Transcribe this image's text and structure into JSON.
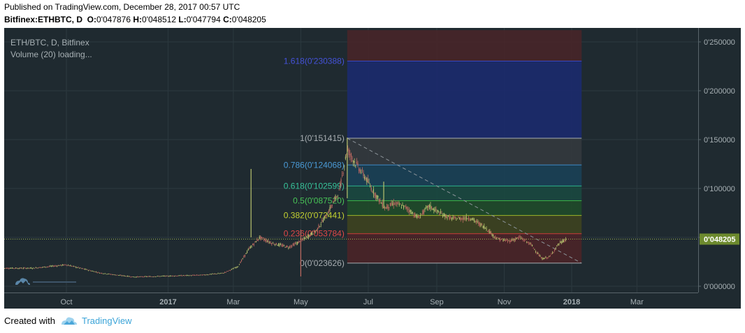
{
  "header": {
    "published": "Published on TradingView.com, December 28, 2017 00:57 UTC",
    "symbol": "Bitfinex:ETHBTC, D",
    "o_label": "O:",
    "o_value": "0'047876",
    "h_label": "H:",
    "h_value": "0'048512",
    "l_label": "L:",
    "l_value": "0'047794",
    "c_label": "C:",
    "c_value": "0'048205"
  },
  "legend": {
    "title": "ETH/BTC, D, Bitfinex",
    "volume": "Volume (20) loading..."
  },
  "footer": {
    "created_with": "Created with",
    "brand": "TradingView",
    "logo_icon": "tradingview-cloud-icon"
  },
  "colors": {
    "background": "#1f2a30",
    "candle_up": "#b8c26e",
    "candle_down": "#c06a62",
    "price_tag": "#6d8a2e",
    "trendline": "#8c949a"
  },
  "chart_data": {
    "type": "candlestick",
    "symbol": "ETH/BTC",
    "interval": "D",
    "exchange": "Bitfinex",
    "ylim": [
      -0.04,
      0.262
    ],
    "y_ticks": [
      {
        "value": 0.25,
        "label": "0'250000"
      },
      {
        "value": 0.2,
        "label": "0'200000"
      },
      {
        "value": 0.15,
        "label": "0'150000"
      },
      {
        "value": 0.1,
        "label": "0'100000"
      },
      {
        "value": 0.05,
        "label": "0'050000"
      },
      {
        "value": 0.0,
        "label": "0'000000"
      }
    ],
    "x_ticks": [
      {
        "date": "2016-10-01",
        "label": "Oct",
        "bold": false
      },
      {
        "date": "2017-01-01",
        "label": "2017",
        "bold": true
      },
      {
        "date": "2017-03-01",
        "label": "Mar",
        "bold": false
      },
      {
        "date": "2017-05-01",
        "label": "May",
        "bold": false
      },
      {
        "date": "2017-07-01",
        "label": "Jul",
        "bold": false
      },
      {
        "date": "2017-09-01",
        "label": "Sep",
        "bold": false
      },
      {
        "date": "2017-11-01",
        "label": "Nov",
        "bold": false
      },
      {
        "date": "2018-01-01",
        "label": "2018",
        "bold": true
      },
      {
        "date": "2018-03-01",
        "label": "Mar",
        "bold": false
      }
    ],
    "x_range": [
      "2016-08-02",
      "2018-04-17"
    ],
    "last_price": {
      "value": 0.048205,
      "label": "0'048205"
    },
    "price_series": [
      [
        "2016-08-05",
        0.0185
      ],
      [
        "2016-09-01",
        0.0185
      ],
      [
        "2016-10-01",
        0.022
      ],
      [
        "2016-11-01",
        0.0135
      ],
      [
        "2016-12-01",
        0.0095
      ],
      [
        "2017-01-01",
        0.0105
      ],
      [
        "2017-02-01",
        0.0115
      ],
      [
        "2017-02-20",
        0.0135
      ],
      [
        "2017-03-05",
        0.02
      ],
      [
        "2017-03-15",
        0.038
      ],
      [
        "2017-03-25",
        0.05
      ],
      [
        "2017-04-05",
        0.044
      ],
      [
        "2017-04-20",
        0.04
      ],
      [
        "2017-05-01",
        0.046
      ],
      [
        "2017-05-15",
        0.057
      ],
      [
        "2017-05-25",
        0.074
      ],
      [
        "2017-06-05",
        0.098
      ],
      [
        "2017-06-12",
        0.14
      ],
      [
        "2017-06-20",
        0.125
      ],
      [
        "2017-06-28",
        0.112
      ],
      [
        "2017-07-05",
        0.098
      ],
      [
        "2017-07-16",
        0.08
      ],
      [
        "2017-07-25",
        0.085
      ],
      [
        "2017-08-05",
        0.08
      ],
      [
        "2017-08-15",
        0.07
      ],
      [
        "2017-08-25",
        0.082
      ],
      [
        "2017-09-05",
        0.074
      ],
      [
        "2017-09-15",
        0.069
      ],
      [
        "2017-10-01",
        0.07
      ],
      [
        "2017-10-15",
        0.06
      ],
      [
        "2017-10-25",
        0.049
      ],
      [
        "2017-11-05",
        0.046
      ],
      [
        "2017-11-15",
        0.05
      ],
      [
        "2017-11-25",
        0.043
      ],
      [
        "2017-12-05",
        0.028
      ],
      [
        "2017-12-12",
        0.03
      ],
      [
        "2017-12-20",
        0.043
      ],
      [
        "2017-12-27",
        0.048
      ]
    ],
    "spikes": [
      {
        "date": "2017-03-17",
        "high": 0.12,
        "low": 0.05,
        "color": "up"
      },
      {
        "date": "2017-05-01",
        "high": 0.058,
        "low": 0.01,
        "color": "down"
      },
      {
        "date": "2017-06-12",
        "high": 0.152,
        "low": 0.09,
        "color": "up"
      },
      {
        "date": "2017-07-15",
        "high": 0.107,
        "low": 0.08,
        "color": "up"
      }
    ],
    "fibonacci": {
      "start_date": "2017-06-12",
      "end_date": "2018-01-10",
      "levels": [
        {
          "ratio": "1.618",
          "value": 0.230388,
          "label": "1.618(0'230388)",
          "line": "#3a47c0",
          "fill": "#1b2a6e",
          "text": "#4452d8"
        },
        {
          "ratio": "1",
          "value": 0.151415,
          "label": "1(0'151415)",
          "line": "#a7adb1",
          "fill": "#33383e",
          "text": "#a7adb1"
        },
        {
          "ratio": "0.786",
          "value": 0.124068,
          "label": "0.786(0'124068)",
          "line": "#3e89c4",
          "fill": "#1a4057",
          "text": "#4a9ad6"
        },
        {
          "ratio": "0.618",
          "value": 0.102599,
          "label": "0.618(0'102599)",
          "line": "#2cb08a",
          "fill": "#1a4840",
          "text": "#37c39a"
        },
        {
          "ratio": "0.5",
          "value": 0.08752,
          "label": "0.5(0'087520)",
          "line": "#3bb146",
          "fill": "#1f4a2a",
          "text": "#48c456"
        },
        {
          "ratio": "0.382",
          "value": 0.072441,
          "label": "0.382(0'072441)",
          "line": "#9eb328",
          "fill": "#3d4220",
          "text": "#c4d231"
        },
        {
          "ratio": "0.236",
          "value": 0.053784,
          "label": "0.236(0'053784)",
          "line": "#c93b3b",
          "fill": "#4a2428",
          "text": "#e04848"
        },
        {
          "ratio": "0",
          "value": 0.023626,
          "label": "0(0'023626)",
          "line": "#a7adb1",
          "fill": "",
          "text": "#a7adb1"
        }
      ],
      "outer_band": {
        "top": 0.262,
        "bottom": 0.230388,
        "fill": "#4a2428"
      }
    },
    "trendline": {
      "from": [
        "2017-06-12",
        0.151415
      ],
      "to": [
        "2018-01-10",
        0.023626
      ]
    }
  }
}
